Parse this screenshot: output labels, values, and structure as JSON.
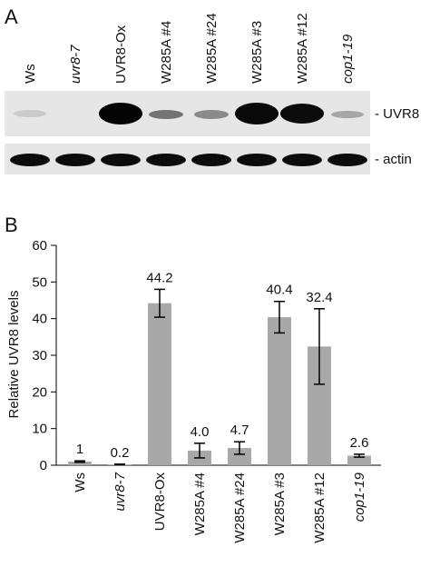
{
  "panel_a": {
    "label": "A",
    "lanes": [
      "Ws",
      "uvr8-7",
      "UVR8-Ox",
      "W285A #4",
      "W285A #24",
      "W285A #3",
      "W285A #12",
      "cop1-19"
    ],
    "bands": [
      "- UVR8",
      "- actin"
    ]
  },
  "chart_data": {
    "type": "bar",
    "panel_label": "B",
    "y_label": "Relative UVR8 levels",
    "categories": [
      "Ws",
      "uvr8-7",
      "UVR8-Ox",
      "W285A #4",
      "W285A #24",
      "W285A #3",
      "W285A #12",
      "cop1-19"
    ],
    "values": [
      1,
      0.2,
      44.2,
      4.0,
      4.7,
      40.4,
      32.4,
      2.6
    ],
    "value_labels": [
      "1",
      "0.2",
      "44.2",
      "4.0",
      "4.7",
      "40.4",
      "32.4",
      "2.6"
    ],
    "errors": [
      0.2,
      0.1,
      3.8,
      2.0,
      1.7,
      4.3,
      10.3,
      0.4
    ],
    "color": "#a8a8a8",
    "ylim": [
      0,
      60
    ],
    "yticks": [
      0,
      10,
      20,
      30,
      40,
      50,
      60
    ]
  }
}
